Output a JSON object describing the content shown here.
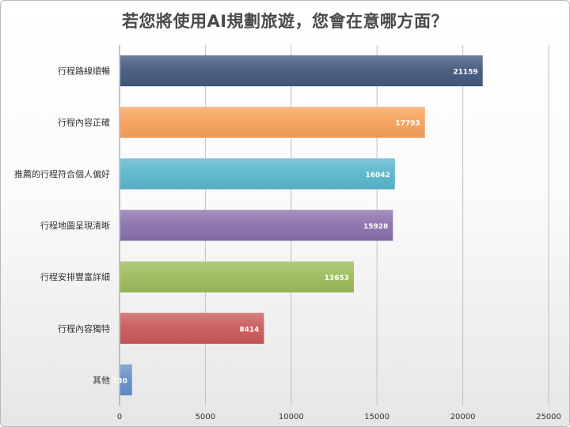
{
  "chart_data": {
    "type": "bar",
    "orientation": "horizontal",
    "title": "若您將使用AI規劃旅遊，您會在意哪方面？",
    "categories": [
      "行程路線順暢",
      "行程內容正確",
      "推薦的行程符合個人偏好",
      "行程地圖呈現清晰",
      "行程安排豐富詳細",
      "行程內容獨特",
      "其他"
    ],
    "values": [
      21159,
      17793,
      16042,
      15928,
      13653,
      8414,
      730
    ],
    "colors": [
      "#44597f",
      "#f7a25c",
      "#5bb6cc",
      "#8a72ad",
      "#9cbc5a",
      "#c95a5a",
      "#6590cc"
    ],
    "xlim": [
      0,
      25000
    ],
    "xticks": [
      0,
      5000,
      10000,
      15000,
      20000,
      25000
    ],
    "grid": true,
    "legend": "none",
    "data_labels": true
  }
}
